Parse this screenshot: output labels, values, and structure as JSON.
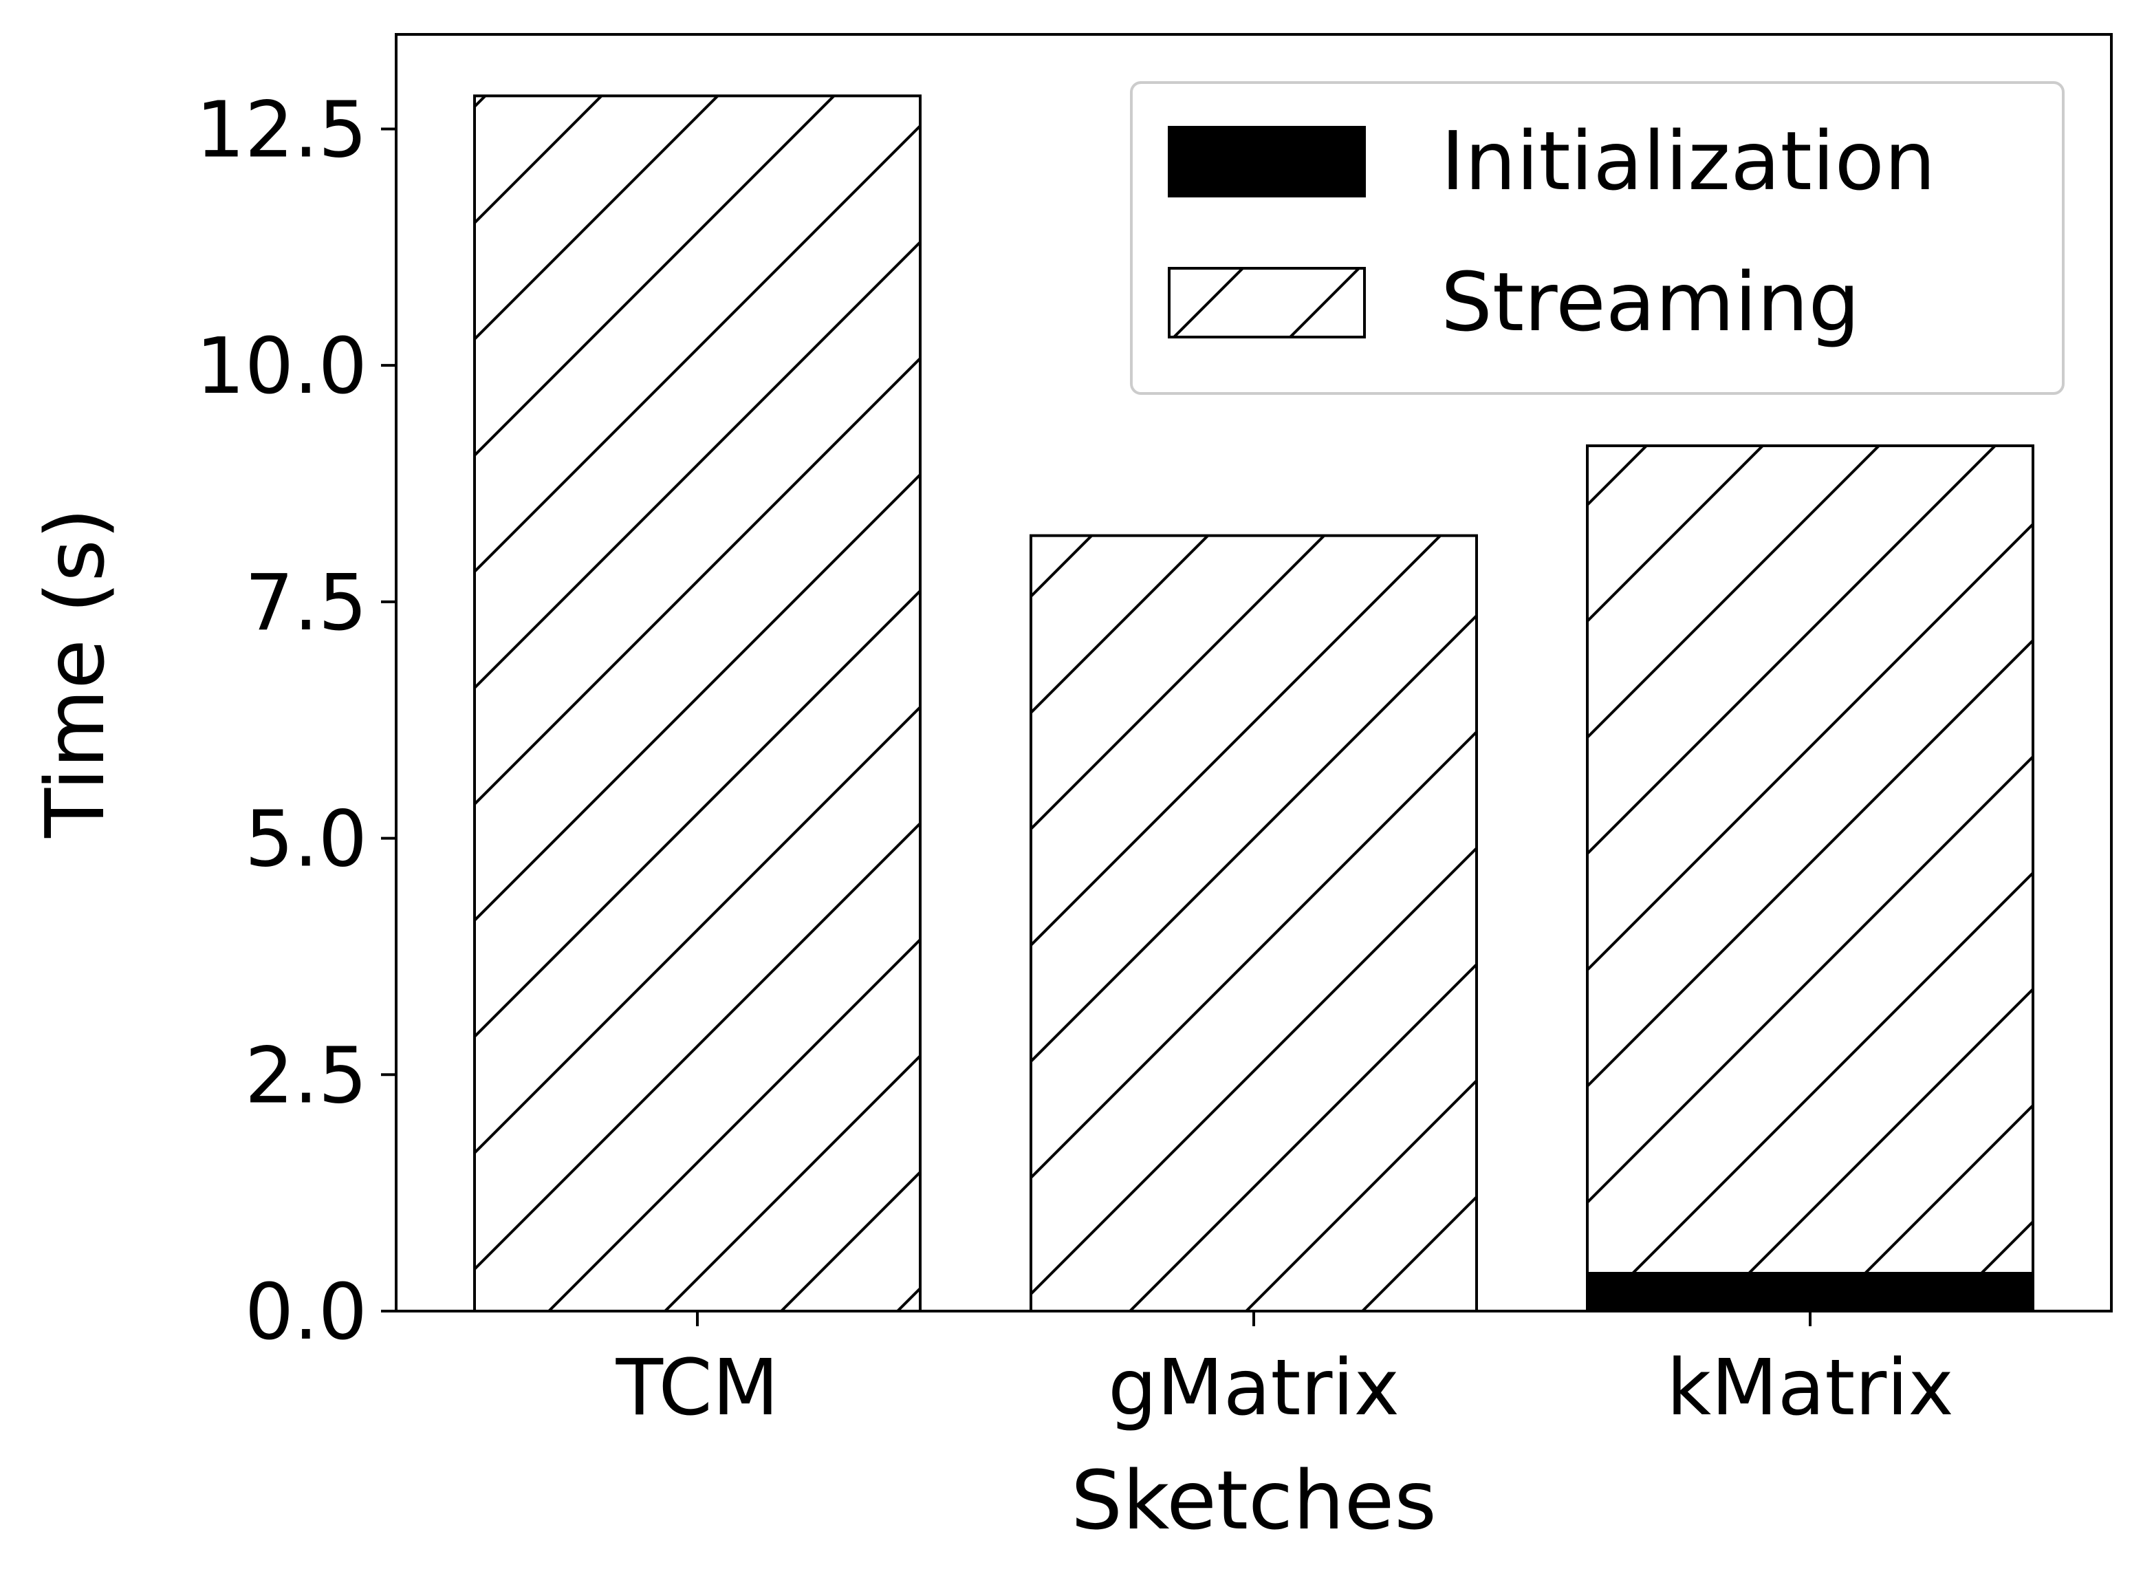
{
  "chart_data": {
    "type": "bar",
    "stacked": true,
    "categories": [
      "TCM",
      "gMatrix",
      "kMatrix"
    ],
    "series": [
      {
        "name": "Initialization",
        "values": [
          0.0,
          0.0,
          0.4
        ],
        "fill": "#000000",
        "hatch": false
      },
      {
        "name": "Streaming",
        "values": [
          12.85,
          8.2,
          8.75
        ],
        "fill": "#ffffff",
        "hatch": true
      }
    ],
    "xlabel": "Sketches",
    "ylabel": "Time (s)",
    "ylim": [
      0,
      13.5
    ],
    "yticks": [
      "0.0",
      "2.5",
      "5.0",
      "7.5",
      "10.0",
      "12.5"
    ],
    "legend_position": "top-right",
    "grid": false
  }
}
